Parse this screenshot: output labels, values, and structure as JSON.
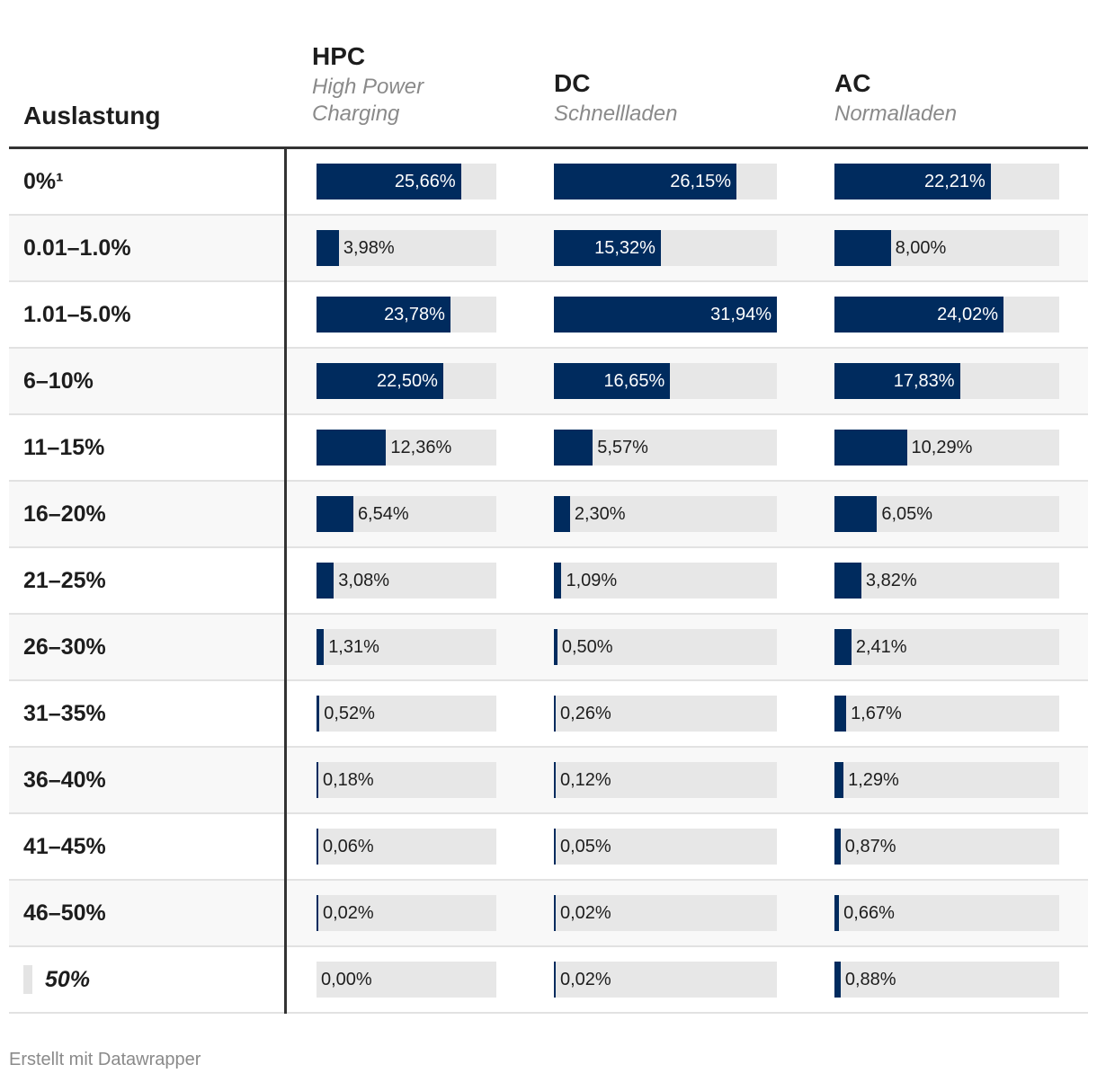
{
  "header": {
    "row_label": "Auslastung",
    "columns": [
      {
        "title": "HPC",
        "subtitle_lines": [
          "High Power",
          "Charging"
        ]
      },
      {
        "title": "DC",
        "subtitle_lines": [
          "Schnellladen"
        ]
      },
      {
        "title": "AC",
        "subtitle_lines": [
          "Normalladen"
        ]
      }
    ]
  },
  "footer": {
    "text": "Erstellt mit Datawrapper"
  },
  "colors": {
    "bar": "#002b5e",
    "track": "#e7e7e7"
  },
  "chart_data": {
    "type": "bar",
    "title": "",
    "xlabel": "",
    "ylabel": "Auslastung",
    "ylim": [
      0,
      31.94
    ],
    "categories": [
      "0%¹",
      "0.01–1.0%",
      "1.01–5.0%",
      "6–10%",
      "11–15%",
      "16–20%",
      "21–25%",
      "26–30%",
      "31–35%",
      "36–40%",
      "41–45%",
      "46–50%",
      "50%"
    ],
    "series": [
      {
        "name": "HPC",
        "values": [
          25.66,
          3.98,
          23.78,
          22.5,
          12.36,
          6.54,
          3.08,
          1.31,
          0.52,
          0.18,
          0.06,
          0.02,
          0.0
        ],
        "labels": [
          "25,66%",
          "3,98%",
          "23,78%",
          "22,50%",
          "12,36%",
          "6,54%",
          "3,08%",
          "1,31%",
          "0,52%",
          "0,18%",
          "0,06%",
          "0,02%",
          "0,00%"
        ]
      },
      {
        "name": "DC",
        "values": [
          26.15,
          15.32,
          31.94,
          16.65,
          5.57,
          2.3,
          1.09,
          0.5,
          0.26,
          0.12,
          0.05,
          0.02,
          0.02
        ],
        "labels": [
          "26,15%",
          "15,32%",
          "31,94%",
          "16,65%",
          "5,57%",
          "2,30%",
          "1,09%",
          "0,50%",
          "0,26%",
          "0,12%",
          "0,05%",
          "0,02%",
          "0,02%"
        ]
      },
      {
        "name": "AC",
        "values": [
          22.21,
          8.0,
          24.02,
          17.83,
          10.29,
          6.05,
          3.82,
          2.41,
          1.67,
          1.29,
          0.87,
          0.66,
          0.88
        ],
        "labels": [
          "22,21%",
          "8,00%",
          "24,02%",
          "17,83%",
          "10,29%",
          "6,05%",
          "3,82%",
          "2,41%",
          "1,67%",
          "1,29%",
          "0,87%",
          "0,66%",
          "0,88%"
        ]
      }
    ]
  }
}
